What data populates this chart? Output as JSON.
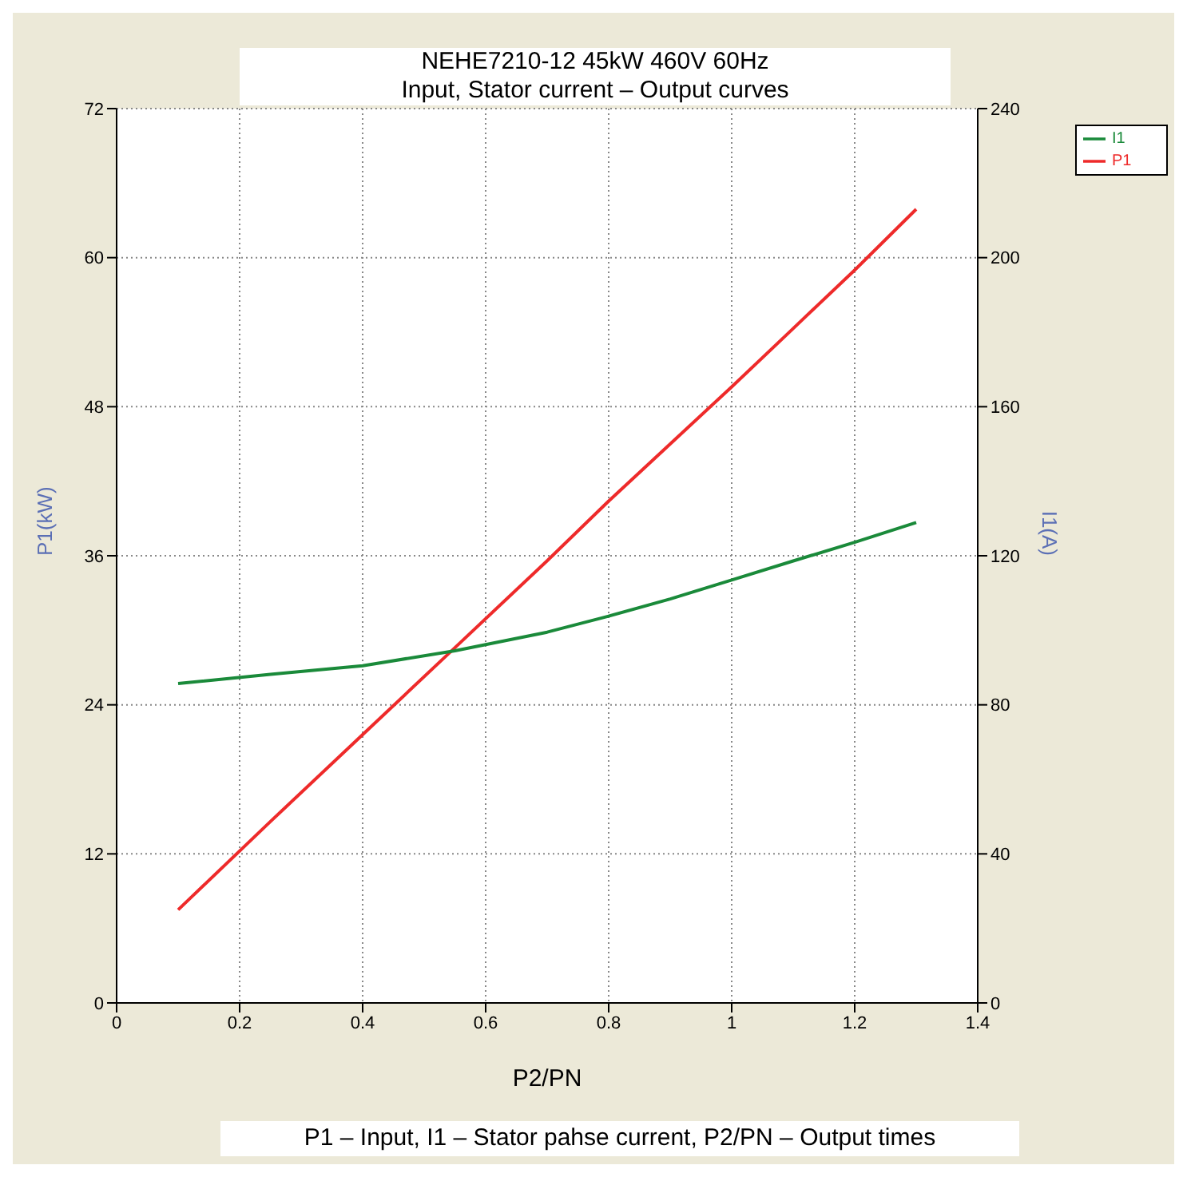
{
  "chart_data": {
    "type": "line",
    "title": "NEHE7210-12 45kW 460V 60Hz",
    "subtitle": "Input, Stator current – Output curves",
    "xlabel": "P2/PN",
    "ylabel": "P1(kW)",
    "y2label": "I1(A)",
    "annotations": [
      "P1 – Input, I1 – Stator pahse current, P2/PN – Output times"
    ],
    "x": [
      0.1,
      0.25,
      0.4,
      0.55,
      0.7,
      0.8,
      0.9,
      1.0,
      1.1,
      1.2,
      1.3
    ],
    "series": [
      {
        "name": "P1",
        "color": "#ee2a2a",
        "values": [
          7.5,
          14.6,
          21.6,
          28.6,
          35.6,
          40.4,
          45.0,
          49.6,
          54.3,
          59.0,
          63.9
        ]
      },
      {
        "name": "I1",
        "color": "#1a8a3a",
        "axis": "y2",
        "values": [
          85.7,
          88.2,
          90.5,
          94.5,
          99.5,
          103.8,
          108.4,
          113.5,
          118.6,
          123.6,
          128.9
        ]
      }
    ],
    "xlim": [
      0,
      1.4
    ],
    "xticks": [
      0,
      0.2,
      0.4,
      0.6,
      0.8,
      1,
      1.2,
      1.4
    ],
    "ylim": [
      0,
      72
    ],
    "yticks": [
      0,
      12,
      24,
      36,
      48,
      60,
      72
    ],
    "y2lim": [
      0,
      240
    ],
    "y2ticks": [
      0,
      40,
      80,
      120,
      160,
      200,
      240
    ],
    "grid": true,
    "legend": "top right",
    "marker": "none",
    "line_style": "solid"
  }
}
